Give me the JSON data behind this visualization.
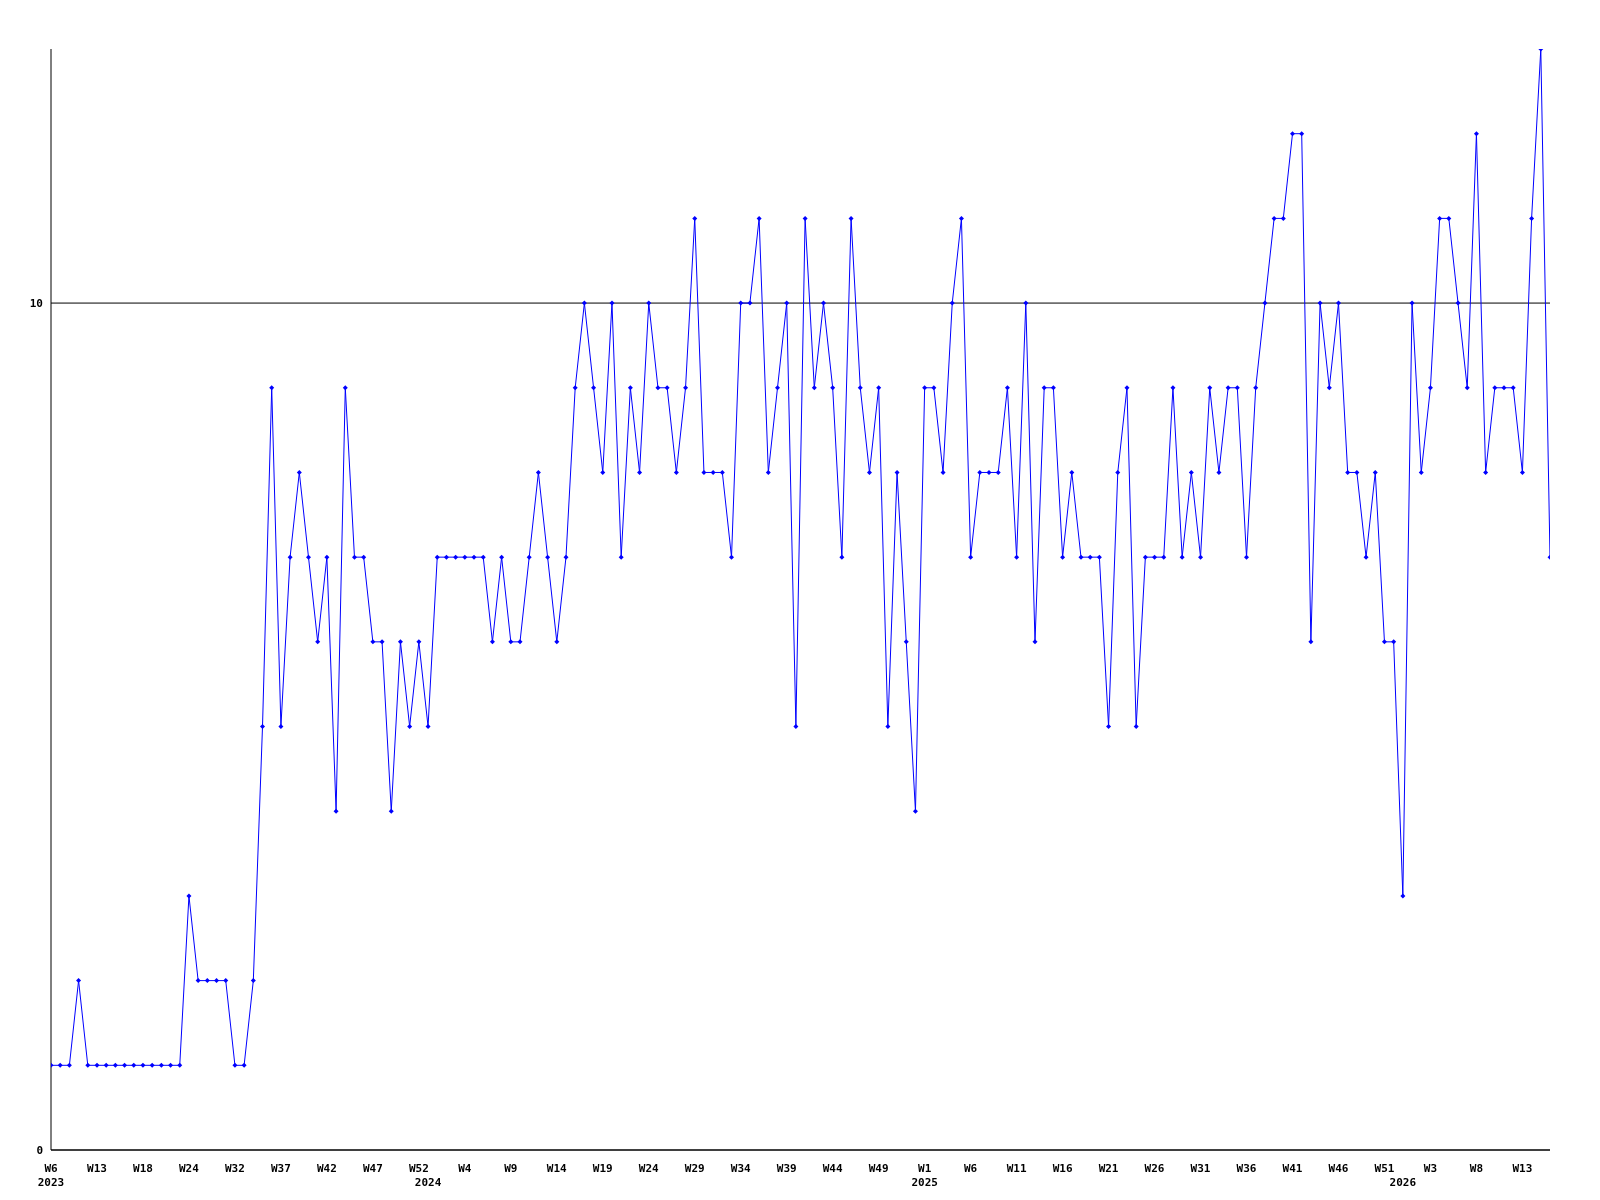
{
  "chart_data": {
    "type": "line",
    "categories": [
      "W6\n2023",
      null,
      null,
      null,
      null,
      "W13",
      null,
      null,
      null,
      null,
      "W18",
      null,
      null,
      null,
      null,
      "W24",
      null,
      null,
      null,
      null,
      "W32",
      null,
      null,
      null,
      null,
      "W37",
      null,
      null,
      null,
      null,
      "W42",
      null,
      null,
      null,
      null,
      "W47",
      null,
      null,
      null,
      null,
      "W52",
      "\n2024",
      null,
      null,
      null,
      "W4",
      null,
      null,
      null,
      null,
      "W9",
      null,
      null,
      null,
      null,
      "W14",
      null,
      null,
      null,
      null,
      "W19",
      null,
      null,
      null,
      null,
      "W24",
      null,
      null,
      null,
      null,
      "W29",
      null,
      null,
      null,
      null,
      "W34",
      null,
      null,
      null,
      null,
      "W39",
      null,
      null,
      null,
      null,
      "W44",
      null,
      null,
      null,
      null,
      "W49",
      null,
      null,
      null,
      null,
      "W1\n2025",
      null,
      null,
      null,
      null,
      "W6",
      null,
      null,
      null,
      null,
      "W11",
      null,
      null,
      null,
      null,
      "W16",
      null,
      null,
      null,
      null,
      "W21",
      null,
      null,
      null,
      null,
      "W26",
      null,
      null,
      null,
      null,
      "W31",
      null,
      null,
      null,
      null,
      "W36",
      null,
      null,
      null,
      null,
      "W41",
      null,
      null,
      null,
      null,
      "W46",
      null,
      null,
      null,
      null,
      "W51",
      null,
      "\n2026",
      null,
      null,
      "W3",
      null,
      null,
      null,
      null,
      "W8",
      null,
      null,
      null,
      null,
      "W13",
      null,
      null,
      null
    ],
    "series": [
      {
        "color": "#0000ff",
        "values": [
          1,
          1,
          1,
          2,
          1,
          1,
          1,
          1,
          1,
          1,
          1,
          1,
          1,
          1,
          1,
          3,
          2,
          2,
          2,
          2,
          1,
          1,
          2,
          5,
          9,
          5,
          7,
          8,
          7,
          6,
          7,
          4,
          9,
          7,
          7,
          6,
          6,
          4,
          6,
          5,
          6,
          5,
          7,
          7,
          7,
          7,
          7,
          7,
          6,
          7,
          6,
          6,
          7,
          8,
          7,
          6,
          7,
          9,
          10,
          9,
          8,
          10,
          7,
          9,
          8,
          10,
          9,
          9,
          8,
          9,
          11,
          8,
          8,
          8,
          7,
          10,
          10,
          11,
          8,
          9,
          10,
          5,
          11,
          9,
          10,
          9,
          7,
          11,
          9,
          8,
          9,
          5,
          8,
          6,
          4,
          9,
          9,
          8,
          10,
          11,
          7,
          8,
          8,
          8,
          9,
          7,
          10,
          6,
          9,
          9,
          7,
          8,
          7,
          7,
          7,
          5,
          8,
          9,
          5,
          7,
          7,
          7,
          9,
          7,
          8,
          7,
          9,
          8,
          9,
          9,
          7,
          9,
          10,
          11,
          11,
          12,
          12,
          6,
          10,
          9,
          10,
          8,
          8,
          7,
          8,
          6,
          6,
          3,
          10,
          8,
          9,
          11,
          11,
          10,
          9,
          12,
          8,
          9,
          9,
          9,
          8,
          11,
          13,
          7
        ]
      }
    ],
    "ylim": [
      0,
      13
    ],
    "yticks": [
      0,
      10
    ],
    "grid": "y",
    "marker": "diamond",
    "line_style": "solid"
  }
}
